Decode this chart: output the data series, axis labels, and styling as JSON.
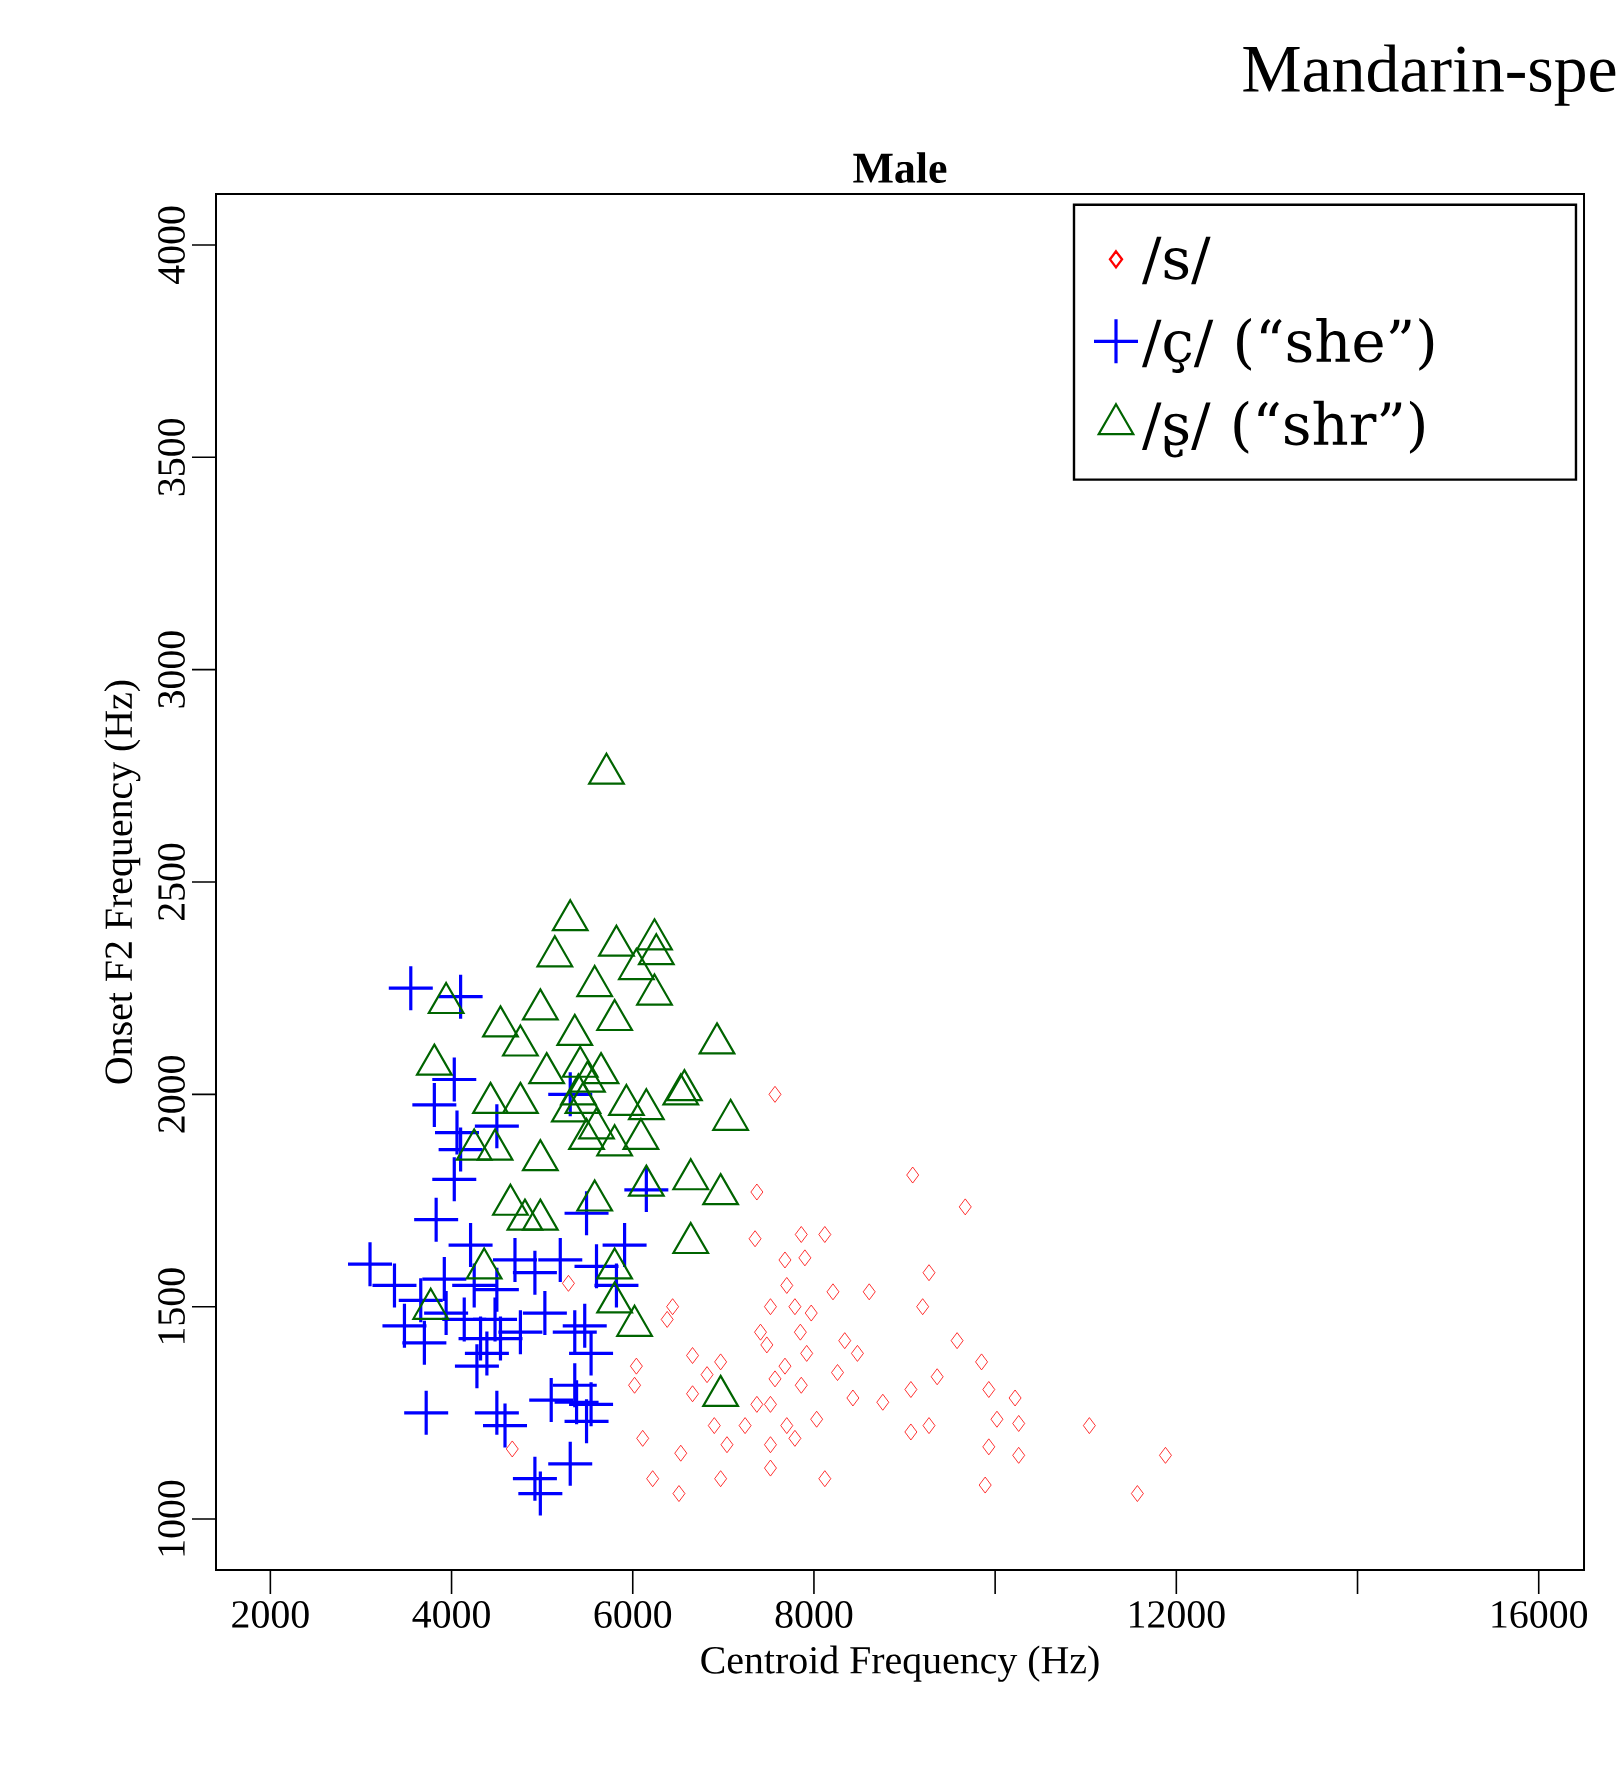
{
  "chart_data": {
    "type": "scatter",
    "title": "Mandarin-spe",
    "subtitle": "Male",
    "xlabel": "Centroid Frequency (Hz)",
    "ylabel": "Onset F2 Frequency (Hz)",
    "xlim": [
      1400,
      16500
    ],
    "ylim": [
      880,
      4120
    ],
    "xticks": [
      2000,
      4000,
      6000,
      8000,
      {
        "value": 10000,
        "label": null
      },
      12000,
      {
        "value": 14000,
        "label": null
      },
      16000
    ],
    "yticks": [
      1000,
      1500,
      2000,
      2500,
      3000,
      3500,
      4000
    ],
    "legend": "top right",
    "series": [
      {
        "name": "/s/",
        "color": "#ff0000",
        "marker": "diamond",
        "x": [
          7570,
          9090,
          9670,
          7370,
          7350,
          7860,
          8120,
          7900,
          7680,
          9270,
          9200,
          8610,
          8210,
          7700,
          7520,
          7970,
          7790,
          6440,
          6380,
          7410,
          7850,
          7480,
          7920,
          8340,
          8480,
          9580,
          9850,
          6040,
          6660,
          6970,
          7680,
          8260,
          6020,
          6820,
          7570,
          7860,
          8430,
          8760,
          9070,
          9360,
          9930,
          10220,
          6660,
          7370,
          7520,
          10020,
          10260,
          11040,
          6900,
          7240,
          7700,
          8030,
          9070,
          9270,
          6110,
          6530,
          7040,
          7520,
          7790,
          9930,
          10260,
          11880,
          6220,
          6510,
          6970,
          7520,
          8120,
          9890,
          11570,
          5290,
          4670
        ],
        "values": [
          2000,
          1810,
          1735,
          1770,
          1660,
          1670,
          1670,
          1615,
          1610,
          1580,
          1500,
          1535,
          1535,
          1550,
          1500,
          1485,
          1500,
          1500,
          1470,
          1440,
          1440,
          1410,
          1390,
          1420,
          1390,
          1420,
          1370,
          1360,
          1385,
          1370,
          1360,
          1345,
          1315,
          1340,
          1330,
          1315,
          1285,
          1275,
          1305,
          1335,
          1305,
          1285,
          1295,
          1270,
          1270,
          1235,
          1225,
          1220,
          1220,
          1220,
          1220,
          1235,
          1205,
          1220,
          1190,
          1155,
          1175,
          1175,
          1190,
          1170,
          1150,
          1150,
          1095,
          1060,
          1095,
          1120,
          1095,
          1080,
          1060,
          1555,
          1165
        ]
      },
      {
        "name": "/ç/ (“she”)",
        "color": "#0000ff",
        "marker": "cross",
        "x": [
          3100,
          3830,
          4030,
          4060,
          3370,
          3660,
          3480,
          3700,
          3920,
          4210,
          4250,
          4700,
          4920,
          4500,
          4320,
          4390,
          4540,
          4760,
          4280,
          5030,
          5360,
          5470,
          5540,
          5600,
          5910,
          5490,
          5200,
          6150,
          3720,
          4500,
          4590,
          5100,
          5380,
          5540,
          5490,
          4920,
          4980,
          5310,
          3940,
          4140,
          4480,
          4100,
          5820,
          5360,
          3550,
          4100,
          4030,
          3810,
          4500,
          5310
        ],
        "values": [
          1600,
          1705,
          1800,
          1910,
          1550,
          1515,
          1455,
          1415,
          1565,
          1645,
          1550,
          1610,
          1580,
          1540,
          1425,
          1390,
          1425,
          1440,
          1360,
          1485,
          1440,
          1455,
          1390,
          1595,
          1645,
          1720,
          1610,
          1775,
          1250,
          1250,
          1220,
          1280,
          1275,
          1270,
          1230,
          1095,
          1060,
          1130,
          1485,
          1470,
          1470,
          1870,
          1550,
          1315,
          2250,
          2230,
          2035,
          1975,
          1925,
          2000
        ]
      },
      {
        "name": "/ʂ/ (“shr”)",
        "color": "#006400",
        "marker": "triangle",
        "x": [
          5710,
          5310,
          5140,
          5820,
          6240,
          6260,
          6040,
          5580,
          4980,
          4540,
          3940,
          4760,
          5360,
          5800,
          6240,
          6930,
          3810,
          5050,
          5420,
          5650,
          6570,
          7080,
          4430,
          4760,
          5930,
          6150,
          4250,
          4480,
          4980,
          5490,
          5800,
          6090,
          6640,
          6970,
          6150,
          5580,
          4650,
          4810,
          4980,
          6640,
          5800,
          4360,
          3770,
          5800,
          6020,
          6970,
          5400,
          5500,
          5300,
          5600,
          5450,
          6530
        ],
        "values": [
          2755,
          2410,
          2325,
          2350,
          2365,
          2330,
          2295,
          2255,
          2200,
          2160,
          2215,
          2115,
          2140,
          2175,
          2235,
          2120,
          2070,
          2050,
          2065,
          2050,
          2010,
          1940,
          1980,
          1980,
          1975,
          1965,
          1870,
          1870,
          1845,
          1895,
          1880,
          1895,
          1800,
          1765,
          1785,
          1750,
          1740,
          1705,
          1705,
          1650,
          1590,
          1590,
          1495,
          1510,
          1455,
          1290,
          2000,
          2030,
          1960,
          1920,
          1980,
          2000
        ]
      }
    ]
  }
}
